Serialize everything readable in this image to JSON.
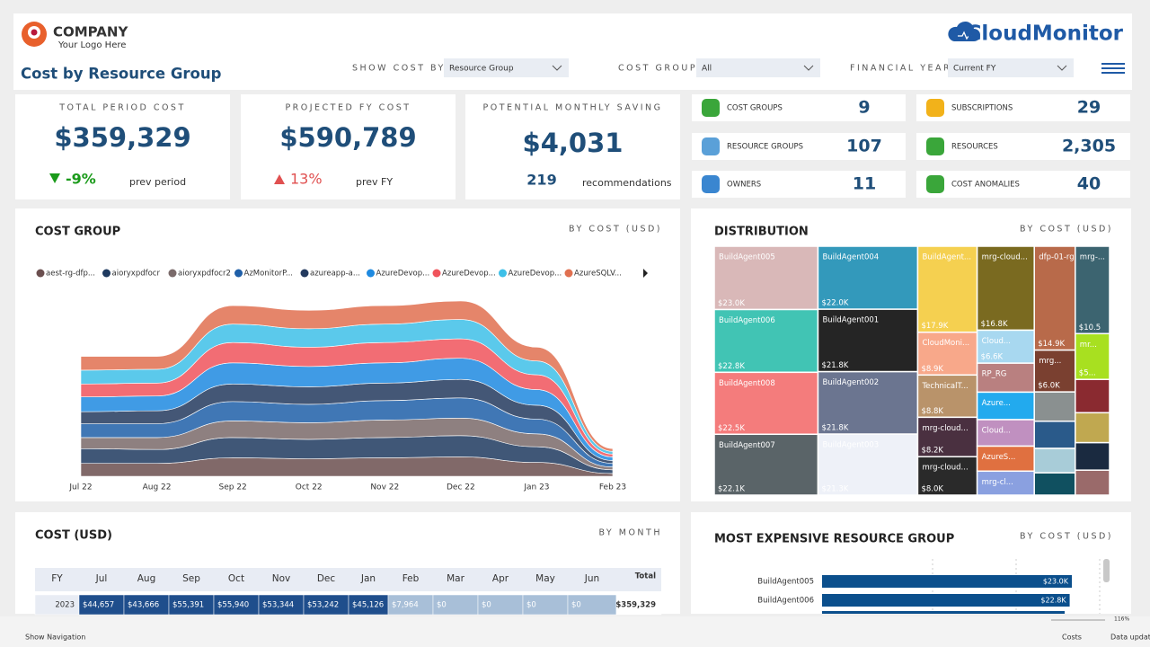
{
  "header": {
    "company": "COMPANY",
    "tagline": "Your Logo Here",
    "title": "Cost by Resource Group",
    "brand": "CloudMonitor"
  },
  "filters": [
    {
      "label": "SHOW COST BY",
      "value": "Resource Group"
    },
    {
      "label": "COST GROUP",
      "value": "All"
    },
    {
      "label": "FINANCIAL YEAR",
      "value": "Current FY"
    }
  ],
  "kpis": [
    {
      "title": "TOTAL PERIOD COST",
      "value": "$359,329",
      "change": "-9%",
      "direction": "down",
      "note": "prev period"
    },
    {
      "title": "PROJECTED FY COST",
      "value": "$590,789",
      "change": "13%",
      "direction": "up",
      "note": "prev FY"
    },
    {
      "title": "POTENTIAL MONTHLY SAVING",
      "value": "$4,031",
      "count": "219",
      "note": "recommendations"
    }
  ],
  "tiles": [
    {
      "label": "COST GROUPS",
      "value": "9"
    },
    {
      "label": "SUBSCRIPTIONS",
      "value": "29"
    },
    {
      "label": "RESOURCE GROUPS",
      "value": "107"
    },
    {
      "label": "RESOURCES",
      "value": "2,305"
    },
    {
      "label": "OWNERS",
      "value": "11"
    },
    {
      "label": "COST ANOMALIES",
      "value": "40"
    }
  ],
  "chart_data": [
    {
      "type": "ribbon",
      "title": "COST GROUP",
      "subtitle": "BY COST (USD)",
      "categories": [
        "Jul 22",
        "Aug 22",
        "Sep 22",
        "Oct 22",
        "Nov 22",
        "Dec 22",
        "Jan 23",
        "Feb 23"
      ],
      "series": [
        {
          "name": "aest-rg-dfp...",
          "color": "#6b4f4f",
          "values": [
            14,
            14,
            20,
            19,
            20,
            21,
            15,
            3
          ]
        },
        {
          "name": "aioryxpdfocr",
          "color": "#1e3a5f",
          "values": [
            16,
            15,
            22,
            21,
            22,
            23,
            17,
            4
          ]
        },
        {
          "name": "aioryxpdfocr2",
          "color": "#7a6a6a",
          "values": [
            12,
            13,
            18,
            18,
            19,
            19,
            14,
            3
          ]
        },
        {
          "name": "AzMonitorP...",
          "color": "#1f5fa8",
          "values": [
            15,
            15,
            21,
            20,
            21,
            22,
            16,
            4
          ]
        },
        {
          "name": "azureapp-a...",
          "color": "#233a5e",
          "values": [
            13,
            14,
            19,
            19,
            19,
            20,
            15,
            3
          ]
        },
        {
          "name": "AzureDevop...",
          "color": "#1f8ae0",
          "values": [
            16,
            16,
            23,
            22,
            22,
            23,
            17,
            4
          ]
        },
        {
          "name": "AzureDevop...",
          "color": "#f0545c",
          "values": [
            14,
            14,
            22,
            21,
            22,
            21,
            16,
            3
          ]
        },
        {
          "name": "AzureDevop...",
          "color": "#3ec0e8",
          "values": [
            15,
            15,
            20,
            20,
            20,
            21,
            15,
            3
          ]
        },
        {
          "name": "AzureSQLV...",
          "color": "#e07050",
          "values": [
            15,
            14,
            20,
            20,
            20,
            20,
            15,
            3
          ]
        }
      ]
    },
    {
      "type": "treemap",
      "title": "DISTRIBUTION",
      "subtitle": "BY COST (USD)",
      "categories": [
        "BuildAgent005",
        "BuildAgent006",
        "BuildAgent008",
        "BuildAgent007",
        "BuildAgent004",
        "BuildAgent001",
        "BuildAgent002",
        "BuildAgent003",
        "BuildAgent...",
        "CloudMoni...",
        "TechnicalT...",
        "mrg-cloud...",
        "mrg-cloud...",
        "mrg-cloud...",
        "Cloud...",
        "RP_RG",
        "Azure...",
        "Cloud...",
        "AzureS...",
        "mrg-cl...",
        "dfp-01-rg",
        "mrg...",
        null,
        null,
        null,
        null,
        "mrg-...",
        "mr...",
        null,
        null,
        null,
        null
      ],
      "values": [
        23.0,
        22.8,
        22.5,
        22.1,
        22.0,
        21.8,
        21.8,
        21.3,
        17.9,
        8.9,
        8.8,
        8.2,
        8.0,
        16.8,
        6.6,
        5.8,
        5.5,
        5.3,
        5.0,
        4.8,
        14.9,
        6.0,
        4.2,
        3.9,
        3.5,
        3.2,
        10.5,
        5.5,
        4.0,
        3.6,
        3.3,
        3.0
      ],
      "value_labels": [
        "$23.0K",
        "$22.8K",
        "$22.5K",
        "$22.1K",
        "$22.0K",
        "$21.8K",
        "$21.8K",
        "$21.3K",
        "$17.9K",
        "$8.9K",
        "$8.8K",
        "$8.2K",
        "$8.0K",
        "$16.8K",
        "$6.6K",
        null,
        null,
        null,
        null,
        null,
        "$14.9K",
        "$6.0K",
        null,
        null,
        null,
        null,
        "$10.5",
        "$5...",
        null,
        null,
        null,
        null
      ],
      "colors": [
        "#d9b8b8",
        "#41c4b4",
        "#f47c7c",
        "#5a6468",
        "#3399bb",
        "#252525",
        "#6b7590",
        "#eef1f8",
        "#f5d050",
        "#f8a88a",
        "#b9936a",
        "#4a3040",
        "#2a2a2a",
        "#7a6a20",
        "#a8d8f0",
        "#b98080",
        "#22aaee",
        "#c090c0",
        "#e07040",
        "#8aa0e0",
        "#b86a4a",
        "#7a4030",
        "#8a9090",
        "#2a5a8a",
        "#a8ccd8",
        "#105060",
        "#3c6470",
        "#a8e020",
        "#8a2a30",
        "#c0a850",
        "#1a2a40",
        "#9a6a6a"
      ]
    },
    {
      "type": "bar",
      "orientation": "horizontal",
      "title": "MOST EXPENSIVE RESOURCE GROUP",
      "subtitle": "BY COST (USD)",
      "categories": [
        "BuildAgent005",
        "BuildAgent006"
      ],
      "values": [
        23.0,
        22.8
      ],
      "value_labels": [
        "$23.0K",
        "$22.8K"
      ],
      "color": "#0b4f8c",
      "xlim": [
        0,
        23.0
      ]
    }
  ],
  "cost_table": {
    "title": "COST (USD)",
    "subtitle": "BY MONTH",
    "header": [
      "FY",
      "Jul",
      "Aug",
      "Sep",
      "Oct",
      "Nov",
      "Dec",
      "Jan",
      "Feb",
      "Mar",
      "Apr",
      "May",
      "Jun",
      "Total"
    ],
    "rows": [
      [
        "2023",
        "$44,657",
        "$43,666",
        "$55,391",
        "$55,940",
        "$53,344",
        "$53,242",
        "$45,126",
        "$7,964",
        "$0",
        "$0",
        "$0",
        "$0",
        "$359,329"
      ]
    ]
  },
  "footer": {
    "navigation": "Show Navigation",
    "page": "Costs",
    "status": "Data updat...",
    "zoom": "116%"
  }
}
